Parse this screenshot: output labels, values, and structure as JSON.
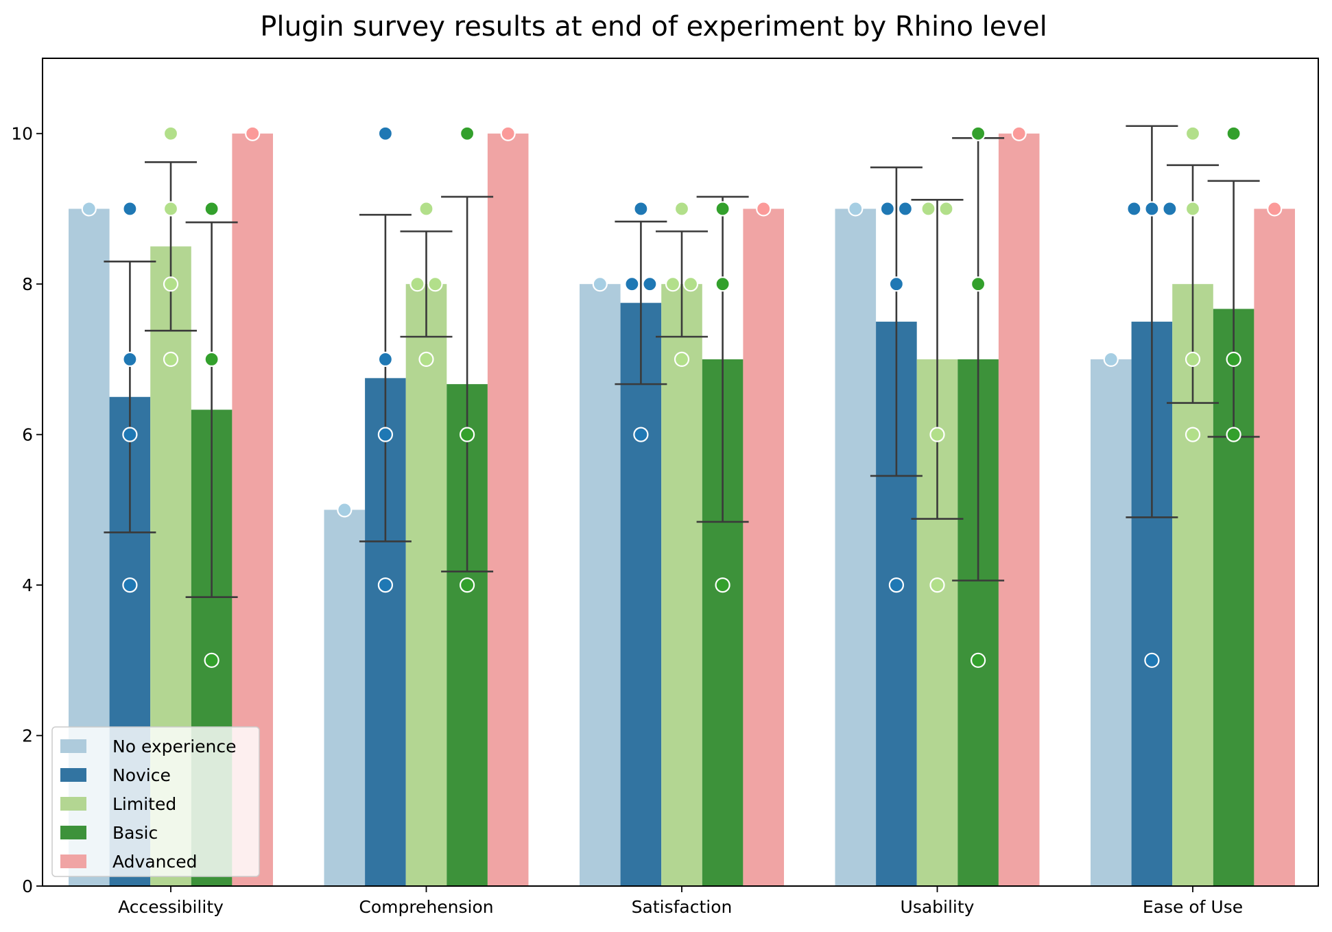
{
  "chart_data": {
    "type": "bar",
    "title": "Plugin survey results at end of experiment by Rhino level",
    "xlabel": "",
    "ylabel": "",
    "ylim": [
      0,
      11
    ],
    "yticks": [
      0,
      2,
      4,
      6,
      8,
      10
    ],
    "categories": [
      "Accessibility",
      "Comprehension",
      "Satisfaction",
      "Usability",
      "Ease of Use"
    ],
    "legend_position": "lower-left",
    "grid": false,
    "series": [
      {
        "name": "No experience",
        "bar_color": "#aecbdc",
        "point_color": "#a6cee3",
        "values": [
          9,
          5,
          8,
          9,
          7
        ],
        "error": [
          null,
          null,
          null,
          null,
          null
        ],
        "points": [
          [
            9
          ],
          [
            5
          ],
          [
            8
          ],
          [
            9
          ],
          [
            7
          ]
        ]
      },
      {
        "name": "Novice",
        "bar_color": "#3274a1",
        "point_color": "#1f78b4",
        "values": [
          6.5,
          6.75,
          7.75,
          7.5,
          7.5
        ],
        "error": [
          [
            4.7,
            8.3
          ],
          [
            4.58,
            8.92
          ],
          [
            6.67,
            8.83
          ],
          [
            5.45,
            9.55
          ],
          [
            4.9,
            10.1
          ]
        ],
        "points": [
          [
            9,
            7,
            6,
            4
          ],
          [
            10,
            7,
            6,
            4
          ],
          [
            9,
            8,
            8,
            6
          ],
          [
            9,
            9,
            8,
            4
          ],
          [
            9,
            9,
            9,
            3
          ]
        ]
      },
      {
        "name": "Limited",
        "bar_color": "#b3d692",
        "point_color": "#b2df8a",
        "values": [
          8.5,
          8,
          8,
          7,
          8
        ],
        "error": [
          [
            7.38,
            9.62
          ],
          [
            7.3,
            8.7
          ],
          [
            7.3,
            8.7
          ],
          [
            4.88,
            9.12
          ],
          [
            6.42,
            9.58
          ]
        ],
        "points": [
          [
            10,
            9,
            8,
            7
          ],
          [
            9,
            8,
            8,
            7
          ],
          [
            9,
            8,
            8,
            7
          ],
          [
            9,
            9,
            6,
            4
          ],
          [
            10,
            9,
            7,
            6
          ]
        ]
      },
      {
        "name": "Basic",
        "bar_color": "#3d923a",
        "point_color": "#33a02c",
        "values": [
          6.33,
          6.67,
          7,
          7,
          7.67
        ],
        "error": [
          [
            3.84,
            8.82
          ],
          [
            4.18,
            9.16
          ],
          [
            4.84,
            9.16
          ],
          [
            4.06,
            9.94
          ],
          [
            5.97,
            9.37
          ]
        ],
        "points": [
          [
            9,
            7,
            3
          ],
          [
            10,
            6,
            4
          ],
          [
            9,
            8,
            4
          ],
          [
            10,
            8,
            3
          ],
          [
            10,
            7,
            6
          ]
        ]
      },
      {
        "name": "Advanced",
        "bar_color": "#f0a4a4",
        "point_color": "#fb9a99",
        "values": [
          10,
          10,
          9,
          10,
          9
        ],
        "error": [
          null,
          null,
          null,
          null,
          null
        ],
        "points": [
          [
            10
          ],
          [
            10
          ],
          [
            9
          ],
          [
            10
          ],
          [
            9
          ]
        ]
      }
    ]
  }
}
